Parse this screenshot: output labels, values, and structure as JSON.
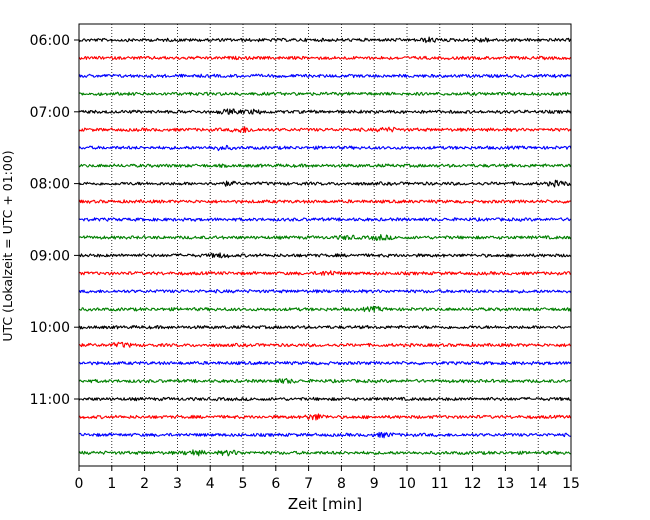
{
  "chart_data": {
    "type": "line",
    "title": "",
    "xlabel": "Zeit  [min]",
    "ylabel": "UTC (Lokalzeit = UTC + 01:00)",
    "xlim": [
      0,
      15
    ],
    "x_ticks": [
      "0",
      "1",
      "2",
      "3",
      "4",
      "5",
      "6",
      "7",
      "8",
      "9",
      "10",
      "11",
      "12",
      "13",
      "14",
      "15"
    ],
    "y_tick_labels": [
      "06:00",
      "07:00",
      "08:00",
      "09:00",
      "10:00",
      "11:00"
    ],
    "y_ticks_hours": [
      6,
      7,
      8,
      9,
      10,
      11
    ],
    "row_interval_minutes": 15,
    "start_time": "06:00",
    "row_count": 24,
    "color_cycle": [
      "#000000",
      "#ff0000",
      "#0000ff",
      "#008000"
    ],
    "grid": {
      "vertical": true,
      "style": "dotted"
    },
    "bursts": [
      {
        "row": 0,
        "at_min": 10.7,
        "amp": 1.6
      },
      {
        "row": 0,
        "at_min": 12.3,
        "amp": 1.4
      },
      {
        "row": 4,
        "at_min": 4.6,
        "amp": 1.6
      },
      {
        "row": 4,
        "at_min": 5.3,
        "amp": 1.3
      },
      {
        "row": 5,
        "at_min": 5.0,
        "amp": 2.2
      },
      {
        "row": 5,
        "at_min": 9.4,
        "amp": 1.5
      },
      {
        "row": 6,
        "at_min": 4.3,
        "amp": 1.6
      },
      {
        "row": 8,
        "at_min": 14.6,
        "amp": 2.0
      },
      {
        "row": 8,
        "at_min": 4.5,
        "amp": 1.3
      },
      {
        "row": 11,
        "at_min": 9.2,
        "amp": 1.9
      },
      {
        "row": 11,
        "at_min": 8.2,
        "amp": 1.3
      },
      {
        "row": 12,
        "at_min": 4.3,
        "amp": 1.5
      },
      {
        "row": 13,
        "at_min": 7.6,
        "amp": 1.8
      },
      {
        "row": 15,
        "at_min": 9.0,
        "amp": 1.5
      },
      {
        "row": 17,
        "at_min": 1.3,
        "amp": 1.6
      },
      {
        "row": 19,
        "at_min": 6.3,
        "amp": 1.4
      },
      {
        "row": 21,
        "at_min": 7.2,
        "amp": 2.4
      },
      {
        "row": 22,
        "at_min": 9.3,
        "amp": 1.6
      },
      {
        "row": 23,
        "at_min": 3.5,
        "amp": 2.0
      },
      {
        "row": 23,
        "at_min": 4.6,
        "amp": 1.8
      }
    ]
  }
}
